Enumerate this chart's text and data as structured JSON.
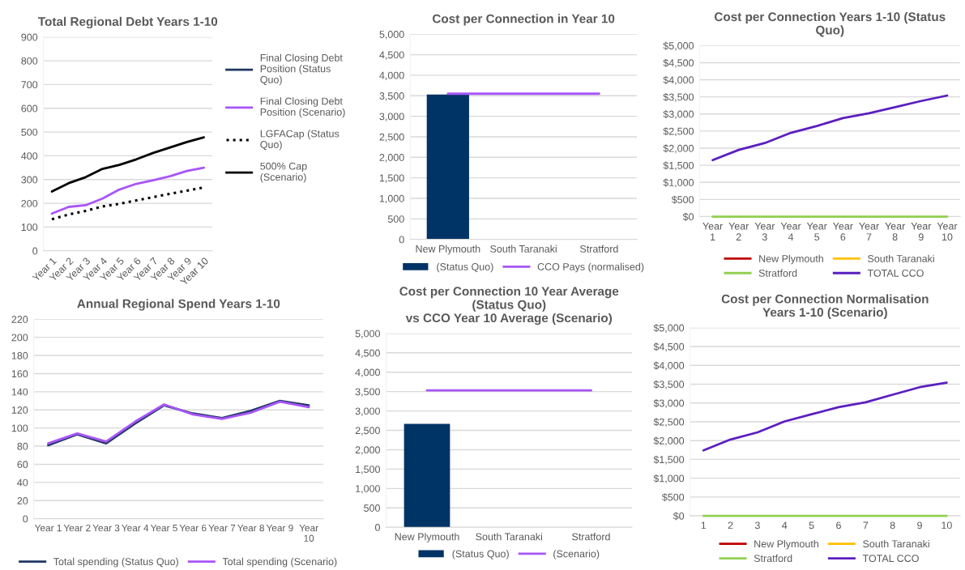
{
  "chart_data": [
    {
      "type": "line",
      "title": "Total Regional Debt Years 1-10",
      "categories": [
        "Year 1",
        "Year 2",
        "Year 3",
        "Year 4",
        "Year 5",
        "Year 6",
        "Year 7",
        "Year 8",
        "Year 9",
        "Year 10"
      ],
      "ylim": [
        0,
        900
      ],
      "yticks": [
        0,
        100,
        200,
        300,
        400,
        500,
        600,
        700,
        800,
        900
      ],
      "grid": "y",
      "legend": "right",
      "series": [
        {
          "name": "Final Closing Debt\nPosition (Status\nQuo)",
          "color": "#1f3864",
          "values": [
            null,
            null,
            null,
            null,
            null,
            null,
            null,
            null,
            null,
            null
          ]
        },
        {
          "name": "Final Closing Debt\nPosition (Scenario)",
          "color": "#a855f7",
          "values": [
            157,
            185,
            192,
            220,
            258,
            282,
            297,
            314,
            336,
            350
          ]
        },
        {
          "name": "LGFACap (Status\nQuo)",
          "color": "#000000",
          "line_style": "dotted",
          "values": [
            133,
            153,
            168,
            187,
            198,
            212,
            226,
            240,
            253,
            267
          ]
        },
        {
          "name": "500% Cap\n(Scenario)",
          "color": "#000000",
          "values": [
            250,
            285,
            310,
            345,
            362,
            385,
            412,
            435,
            458,
            478
          ]
        }
      ]
    },
    {
      "type": "bar",
      "title": "Cost per Connection in Year 10",
      "categories": [
        "New Plymouth",
        "South Taranaki",
        "Stratford"
      ],
      "ylim": [
        0,
        5000
      ],
      "yticks": [
        0,
        500,
        {
          "value": 1000,
          "label": "1,000"
        },
        {
          "value": 1500,
          "label": "1,500"
        },
        {
          "value": 2000,
          "label": "2,000"
        },
        {
          "value": 2500,
          "label": "2,500"
        },
        {
          "value": 3000,
          "label": "3,000"
        },
        {
          "value": 3500,
          "label": "3,500"
        },
        {
          "value": 4000,
          "label": "4,000"
        },
        {
          "value": 4500,
          "label": "4,500"
        },
        {
          "value": 5000,
          "label": "5,000"
        }
      ],
      "grid": "y",
      "legend": "bottom",
      "series": [
        {
          "name": "(Status Quo)",
          "color": "#003366",
          "values": [
            3530,
            null,
            null
          ]
        },
        {
          "name": "CCO Pays (normalised)",
          "type": "line",
          "color": "#a855f7",
          "values": [
            3550,
            3550,
            3550
          ]
        }
      ]
    },
    {
      "type": "line",
      "title": "Cost per Connection Years 1-10 (Status\nQuo)",
      "categories": [
        "Year\n1",
        "Year\n2",
        "Year\n3",
        "Year\n4",
        "Year\n5",
        "Year\n6",
        "Year\n7",
        "Year\n8",
        "Year\n9",
        "Year\n10"
      ],
      "ylim": [
        0,
        5000
      ],
      "yticks": [
        {
          "value": 0,
          "label": "$0"
        },
        {
          "value": 500,
          "label": "$500"
        },
        {
          "value": 1000,
          "label": "$1,000"
        },
        {
          "value": 1500,
          "label": "$1,500"
        },
        {
          "value": 2000,
          "label": "$2,000"
        },
        {
          "value": 2500,
          "label": "$2,500"
        },
        {
          "value": 3000,
          "label": "$3,000"
        },
        {
          "value": 3500,
          "label": "$3,500"
        },
        {
          "value": 4000,
          "label": "$4,000"
        },
        {
          "value": 4500,
          "label": "$4,500"
        },
        {
          "value": 5000,
          "label": "$5,000"
        }
      ],
      "grid": "y",
      "legend": "bottom",
      "series": [
        {
          "name": "New Plymouth",
          "color": "#c00000",
          "values": [
            null,
            null,
            null,
            null,
            null,
            null,
            null,
            null,
            null,
            null
          ]
        },
        {
          "name": "South Taranaki",
          "color": "#ffc000",
          "values": [
            null,
            null,
            null,
            null,
            null,
            null,
            null,
            null,
            null,
            null
          ]
        },
        {
          "name": "Stratford",
          "color": "#92d050",
          "values": [
            0,
            0,
            0,
            0,
            0,
            0,
            0,
            0,
            0,
            0
          ]
        },
        {
          "name": "TOTAL CCO",
          "color": "#5b1fbf",
          "values": [
            1650,
            1950,
            2150,
            2450,
            2650,
            2880,
            3020,
            3200,
            3380,
            3540
          ]
        }
      ]
    },
    {
      "type": "line",
      "title": "Annual Regional Spend Years 1-10",
      "categories": [
        "Year 1",
        "Year 2",
        "Year 3",
        "Year 4",
        "Year 5",
        "Year 6",
        "Year 7",
        "Year 8",
        "Year 9",
        "Year\n10"
      ],
      "ylim": [
        0,
        220
      ],
      "yticks": [
        0,
        20,
        40,
        60,
        80,
        100,
        120,
        140,
        160,
        180,
        200,
        220
      ],
      "grid": "y",
      "legend": "bottom",
      "series": [
        {
          "name": "Total spending (Status Quo)",
          "color": "#1f3864",
          "values": [
            81,
            93,
            83,
            105,
            125,
            116,
            111,
            119,
            130,
            125
          ]
        },
        {
          "name": "Total spending (Scenario)",
          "color": "#a855f7",
          "values": [
            83,
            94,
            85,
            107,
            126,
            115,
            110,
            117,
            129,
            123
          ]
        }
      ]
    },
    {
      "type": "bar",
      "title": "Cost per Connection 10 Year Average\n(Status Quo)\nvs CCO Year 10 Average (Scenario)",
      "categories": [
        "New Plymouth",
        "South Taranaki",
        "Stratford"
      ],
      "ylim": [
        0,
        5000
      ],
      "yticks": [
        0,
        500,
        {
          "value": 1000,
          "label": "1,000"
        },
        {
          "value": 1500,
          "label": "1,500"
        },
        {
          "value": 2000,
          "label": "2,000"
        },
        {
          "value": 2500,
          "label": "2,500"
        },
        {
          "value": 3000,
          "label": "3,000"
        },
        {
          "value": 3500,
          "label": "3,500"
        },
        {
          "value": 4000,
          "label": "4,000"
        },
        {
          "value": 4500,
          "label": "4,500"
        },
        {
          "value": 5000,
          "label": "5,000"
        }
      ],
      "grid": "y",
      "legend": "bottom",
      "series": [
        {
          "name": "(Status Quo)",
          "color": "#003366",
          "values": [
            2670,
            null,
            null
          ]
        },
        {
          "name": "(Scenario)",
          "type": "line",
          "color": "#a855f7",
          "values": [
            3530,
            3530,
            3530
          ]
        }
      ]
    },
    {
      "type": "line",
      "title": "Cost per Connection Normalisation\nYears 1-10 (Scenario)",
      "categories": [
        "1",
        "2",
        "3",
        "4",
        "5",
        "6",
        "7",
        "8",
        "9",
        "10"
      ],
      "ylim": [
        0,
        5000
      ],
      "yticks": [
        {
          "value": 0,
          "label": "$0"
        },
        {
          "value": 500,
          "label": "$500"
        },
        {
          "value": 1000,
          "label": "$1,000"
        },
        {
          "value": 1500,
          "label": "$1,500"
        },
        {
          "value": 2000,
          "label": "$2,000"
        },
        {
          "value": 2500,
          "label": "$2,500"
        },
        {
          "value": 3000,
          "label": "$3,000"
        },
        {
          "value": 3500,
          "label": "$3,500"
        },
        {
          "value": 4000,
          "label": "$4,000"
        },
        {
          "value": 4500,
          "label": "$4,500"
        },
        {
          "value": 5000,
          "label": "$5,000"
        }
      ],
      "grid": "y",
      "legend": "bottom",
      "series": [
        {
          "name": "New Plymouth",
          "color": "#c00000",
          "values": [
            null,
            null,
            null,
            null,
            null,
            null,
            null,
            null,
            null,
            null
          ]
        },
        {
          "name": "South Taranaki",
          "color": "#ffc000",
          "values": [
            null,
            null,
            null,
            null,
            null,
            null,
            null,
            null,
            null,
            null
          ]
        },
        {
          "name": "Stratford",
          "color": "#92d050",
          "values": [
            0,
            0,
            0,
            0,
            0,
            0,
            0,
            0,
            0,
            0
          ]
        },
        {
          "name": "TOTAL CCO",
          "color": "#5b1fbf",
          "values": [
            1740,
            2030,
            2220,
            2510,
            2700,
            2890,
            3020,
            3220,
            3420,
            3540
          ]
        }
      ]
    }
  ]
}
